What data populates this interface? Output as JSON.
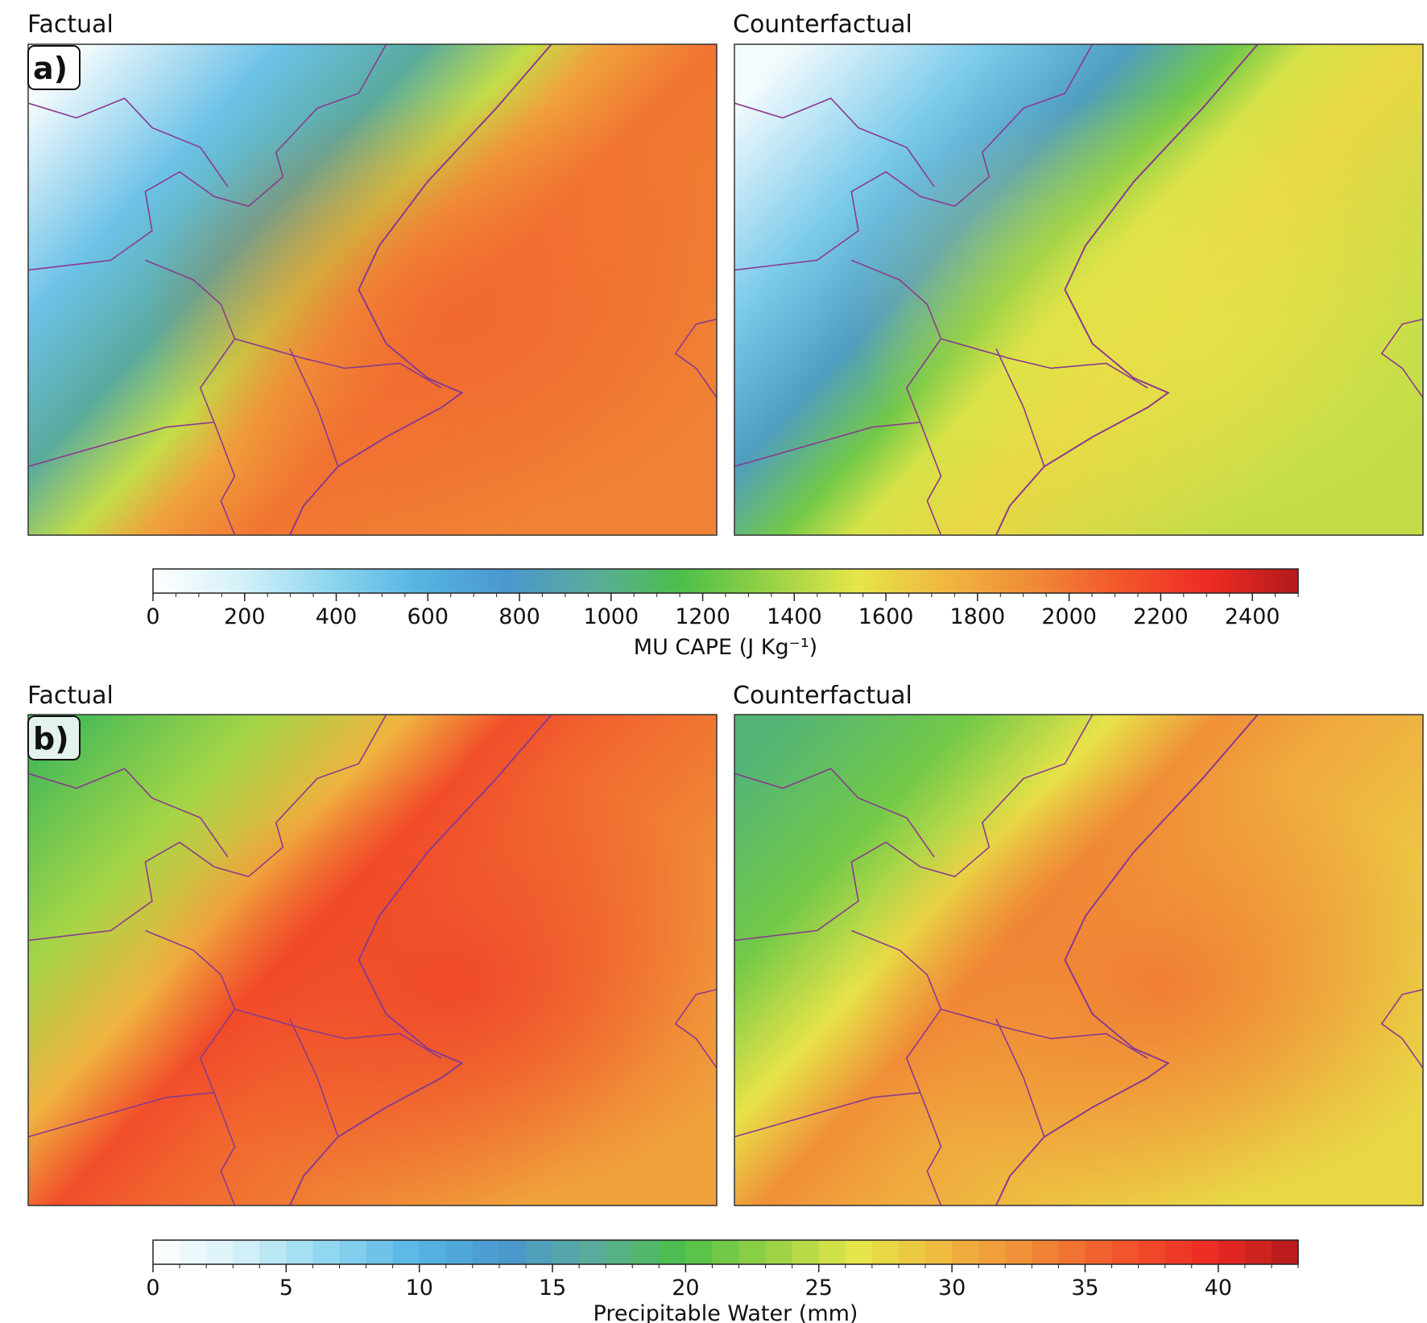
{
  "chart_data": [
    {
      "type": "heatmap",
      "panel_label": "a)",
      "panels": [
        {
          "title": "Factual",
          "summary": "Highest MU CAPE (about 1800-2100) over the sea east of the coastline; low values (0-600) over the northwestern interior"
        },
        {
          "title": "Counterfactual",
          "summary": "Same pattern with lower values; maritime maximum about 1400-1700"
        }
      ],
      "colorbar": {
        "label": "MU CAPE (J Kg⁻¹)",
        "min": 0,
        "max": 2500,
        "ticks": [
          0,
          200,
          400,
          600,
          800,
          1000,
          1200,
          1400,
          1600,
          1800,
          2000,
          2200,
          2400
        ],
        "continuous": true
      }
    },
    {
      "type": "heatmap",
      "panel_label": "b)",
      "panels": [
        {
          "title": "Factual",
          "summary": "Precipitable water about 33-37 mm over the sea and coastal plain; about 20-26 mm over the interior"
        },
        {
          "title": "Counterfactual",
          "summary": "Same pattern with lower values; maritime values about 29-32 mm"
        }
      ],
      "colorbar": {
        "label": "Precipitable Water (mm)",
        "min": 0,
        "max": 43,
        "ticks": [
          0,
          5,
          10,
          15,
          20,
          25,
          30,
          35,
          40
        ],
        "continuous": false,
        "step": 1
      }
    }
  ],
  "colors": {
    "colormap": [
      "#ffffff",
      "#d4f1f9",
      "#8fd6ef",
      "#56b5e3",
      "#4a97cf",
      "#5aab9b",
      "#4cbf4a",
      "#98d246",
      "#e6e649",
      "#f0b740",
      "#f08a37",
      "#f2552b",
      "#ee2a24",
      "#b31b1b"
    ],
    "coastline": "#8a3a8f",
    "frame": "#333333"
  }
}
